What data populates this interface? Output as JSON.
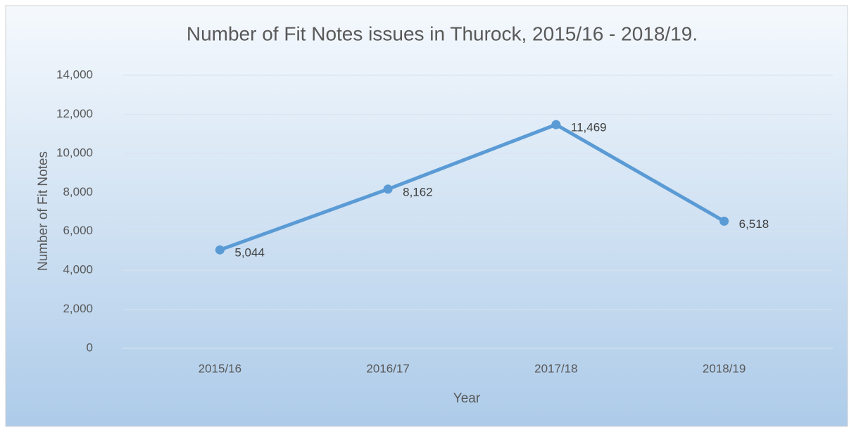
{
  "chart_data": {
    "type": "line",
    "title": "Number of Fit Notes issues in Thurock, 2015/16 - 2018/19.",
    "x_label": "Year",
    "y_label": "Number of Fit Notes",
    "categories": [
      "2015/16",
      "2016/17",
      "2017/18",
      "2018/19"
    ],
    "series": [
      {
        "name": "Number of Fit Notes",
        "color": "#5b9bd5",
        "values": [
          5044,
          8162,
          11469,
          6518
        ],
        "value_labels": [
          "5,044",
          "8,162",
          "11,469",
          "6,518"
        ]
      }
    ],
    "ylim": [
      0,
      14000
    ],
    "yticks": [
      0,
      {
        "value": 2000,
        "label": "2,000"
      },
      {
        "value": 4000,
        "label": "4,000"
      },
      {
        "value": 6000,
        "label": "6,000"
      },
      {
        "value": 8000,
        "label": "8,000"
      },
      {
        "value": 10000,
        "label": "10,000"
      },
      {
        "value": 12000,
        "label": "12,000"
      },
      {
        "value": 14000,
        "label": "14,000"
      }
    ],
    "grid": true
  }
}
